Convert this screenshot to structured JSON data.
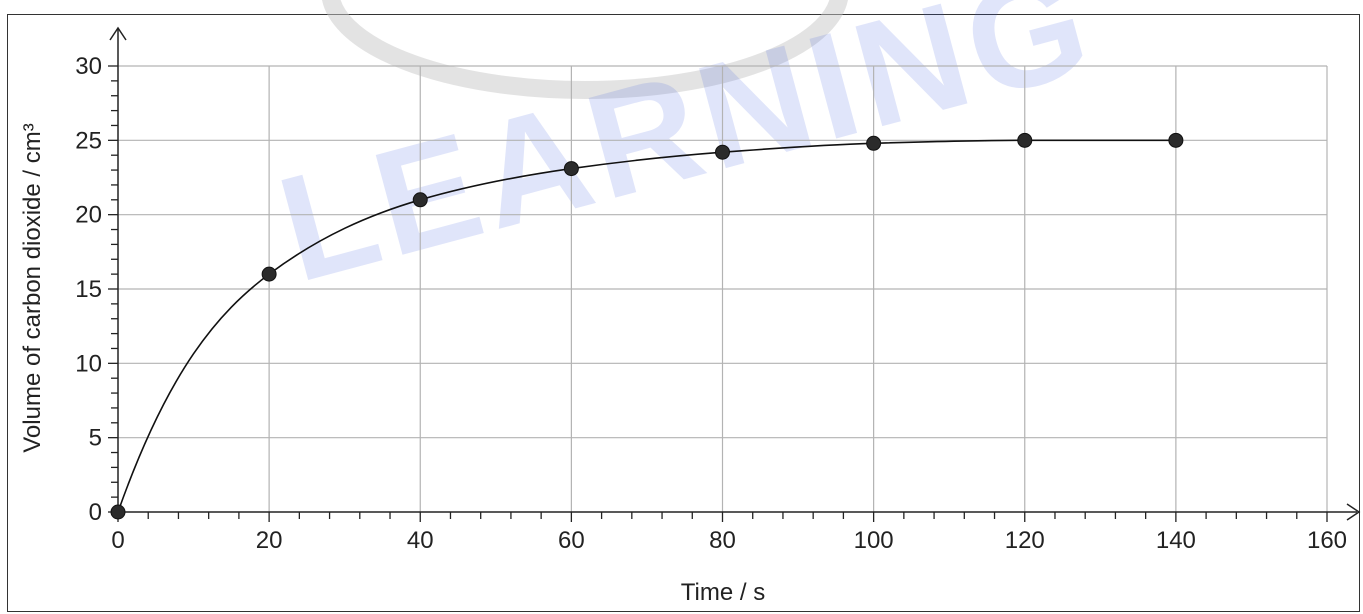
{
  "watermark": {
    "text": "LEARNING",
    "color": "#3f5fe0"
  },
  "chart_data": {
    "type": "line",
    "title": "",
    "xlabel": "Time / s",
    "ylabel": "Volume of carbon dioxide / cm³",
    "xlim": [
      0,
      160
    ],
    "ylim": [
      0,
      30
    ],
    "x_ticks": [
      0,
      20,
      40,
      60,
      80,
      100,
      120,
      140,
      160
    ],
    "y_ticks": [
      0,
      5,
      10,
      15,
      20,
      25,
      30
    ],
    "x_minor_step": 4,
    "y_minor_step": 1,
    "grid": true,
    "series": [
      {
        "name": "",
        "x": [
          0,
          20,
          40,
          60,
          80,
          100,
          120,
          140
        ],
        "y": [
          0,
          16,
          21,
          23.1,
          24.2,
          24.8,
          25,
          25
        ],
        "marker": "circle",
        "curve": "smooth"
      }
    ],
    "colors": {
      "line": "#111111",
      "marker": "#2b2b2b",
      "grid": "#b3b3b3"
    }
  }
}
